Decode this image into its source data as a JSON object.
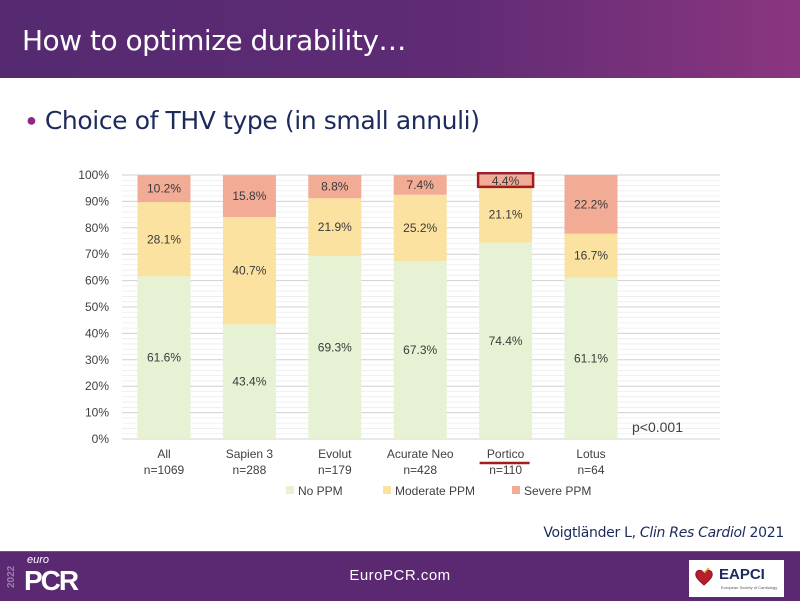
{
  "header": {
    "title": "How to optimize durability…"
  },
  "bullet": {
    "text": "Choice of THV type (in small annuli)"
  },
  "chart_data": {
    "type": "bar",
    "stacked": true,
    "title": "",
    "xlabel": "",
    "ylabel": "",
    "ylim": [
      0,
      100
    ],
    "y_ticks": [
      "0%",
      "10%",
      "20%",
      "30%",
      "40%",
      "50%",
      "60%",
      "70%",
      "80%",
      "90%",
      "100%"
    ],
    "grid": true,
    "categories": [
      "All",
      "Sapien 3",
      "Evolut",
      "Acurate Neo",
      "Portico",
      "Lotus"
    ],
    "category_n": [
      "n=1069",
      "n=288",
      "n=179",
      "n=428",
      "n=110",
      "n=64"
    ],
    "series": [
      {
        "name": "No PPM",
        "color": "#e6f2d3",
        "values": [
          61.6,
          43.4,
          69.3,
          67.3,
          74.4,
          61.1
        ],
        "labels": [
          "61.6%",
          "43.4%",
          "69.3%",
          "67.3%",
          "74.4%",
          "61.1%"
        ]
      },
      {
        "name": "Moderate PPM",
        "color": "#fbe2a0",
        "values": [
          28.1,
          40.7,
          21.9,
          25.2,
          21.1,
          16.7
        ],
        "labels": [
          "28.1%",
          "40.7%",
          "21.9%",
          "25.2%",
          "21.1%",
          "16.7%"
        ]
      },
      {
        "name": "Severe PPM",
        "color": "#f2ab95",
        "values": [
          10.2,
          15.8,
          8.8,
          7.4,
          4.4,
          22.2
        ],
        "labels": [
          "10.2%",
          "15.8%",
          "8.8%",
          "7.4%",
          "4.4%",
          "22.2%"
        ]
      }
    ],
    "legend_position": "bottom",
    "annotations": [
      {
        "text": "p<0.001"
      }
    ],
    "highlight": {
      "category": "Portico",
      "series": "Severe PPM",
      "color": "#a31c22"
    }
  },
  "citation": {
    "author": "Voigtländer L, ",
    "journal": "Clin Res Cardiol",
    "year": " 2021"
  },
  "footer": {
    "url": "EuroPCR.com",
    "logo_year": "2022",
    "logo_euro": "euro",
    "logo_pcr": "PCR",
    "partner_name": "EAPCI",
    "partner_sub": "European Society of Cardiology"
  }
}
